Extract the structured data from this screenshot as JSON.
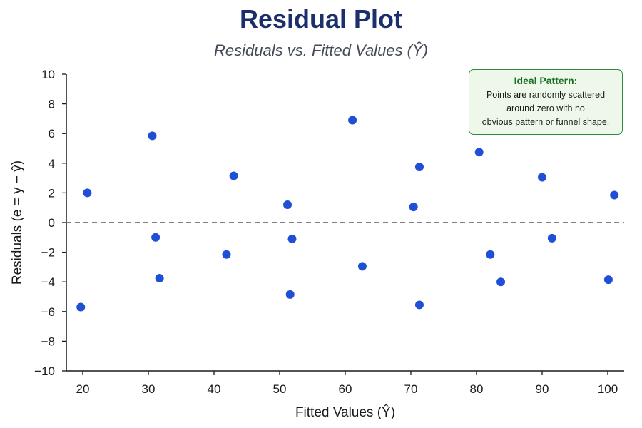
{
  "title": "Residual Plot",
  "subtitle": "Residuals vs. Fitted Values (Ŷ)",
  "legend": {
    "title": "Ideal Pattern:",
    "lines": [
      "Points are randomly scattered",
      "around zero with no",
      "obvious pattern or funnel shape."
    ]
  },
  "colors": {
    "points": "#1f4fd6",
    "title": "#1a2f6b",
    "legend_border": "#2e8b3a",
    "legend_fill": "#eef8ea",
    "reference_line": "#555555"
  },
  "chart_data": {
    "type": "scatter",
    "title": "Residual Plot",
    "subtitle": "Residuals vs. Fitted Values (Ŷ)",
    "xlabel": "Fitted Values (Ŷ)",
    "ylabel": "Residuals (e = y − ŷ)",
    "xlim": [
      17.5,
      102.5
    ],
    "ylim": [
      -10,
      10
    ],
    "xticks": [
      20,
      30,
      40,
      50,
      60,
      70,
      80,
      90,
      100
    ],
    "yticks": [
      10,
      8,
      6,
      4,
      2,
      0,
      -2,
      -4,
      -6,
      -8,
      -10
    ],
    "ytick_labels": [
      "10",
      "8",
      "6",
      "4",
      "2",
      "0",
      "−2",
      "−4",
      "−6",
      "−8",
      "−10"
    ],
    "grid": false,
    "reference_line": {
      "y": 0,
      "style": "dashed"
    },
    "points": [
      {
        "x": 19.7,
        "y": -5.7
      },
      {
        "x": 20.7,
        "y": 2.0
      },
      {
        "x": 30.6,
        "y": 5.85
      },
      {
        "x": 31.1,
        "y": -1.0
      },
      {
        "x": 31.7,
        "y": -3.75
      },
      {
        "x": 41.9,
        "y": -2.15
      },
      {
        "x": 43.0,
        "y": 3.15
      },
      {
        "x": 51.2,
        "y": 1.2
      },
      {
        "x": 51.6,
        "y": -4.85
      },
      {
        "x": 51.9,
        "y": -1.1
      },
      {
        "x": 61.1,
        "y": 6.9
      },
      {
        "x": 62.6,
        "y": -2.95
      },
      {
        "x": 70.4,
        "y": 1.05
      },
      {
        "x": 71.3,
        "y": 3.75
      },
      {
        "x": 71.3,
        "y": -5.55
      },
      {
        "x": 80.4,
        "y": 4.75
      },
      {
        "x": 82.1,
        "y": -2.15
      },
      {
        "x": 83.7,
        "y": -4.0
      },
      {
        "x": 90.0,
        "y": 3.05
      },
      {
        "x": 91.5,
        "y": -1.05
      },
      {
        "x": 100.1,
        "y": -3.85
      },
      {
        "x": 101.0,
        "y": 1.85
      }
    ]
  }
}
